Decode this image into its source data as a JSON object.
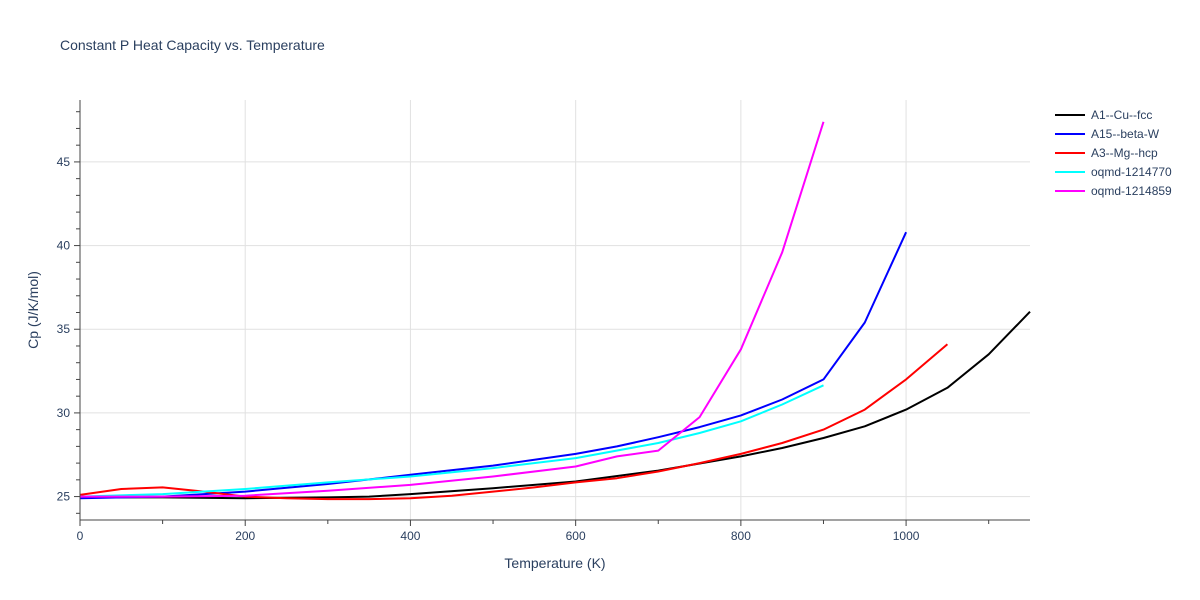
{
  "chart_data": {
    "type": "line",
    "title": "Constant P Heat Capacity vs. Temperature",
    "xlabel": "Temperature (K)",
    "ylabel": "Cp (J/K/mol)",
    "xlim": [
      0,
      1150
    ],
    "ylim": [
      23.6,
      48.7
    ],
    "xticks": [
      0,
      200,
      400,
      600,
      800,
      1000
    ],
    "yticks": [
      25,
      30,
      35,
      40,
      45
    ],
    "grid": true,
    "legend_position": "top-right",
    "series": [
      {
        "name": "A1--Cu--fcc",
        "color": "#000000",
        "x": [
          0,
          100,
          200,
          300,
          350,
          400,
          500,
          600,
          700,
          800,
          850,
          900,
          950,
          1000,
          1050,
          1100,
          1150
        ],
        "y": [
          24.95,
          24.95,
          24.9,
          24.95,
          25.0,
          25.15,
          25.5,
          25.9,
          26.55,
          27.4,
          27.9,
          28.5,
          29.2,
          30.2,
          31.5,
          33.5,
          36.05
        ]
      },
      {
        "name": "A15--beta-W",
        "color": "#0000ff",
        "x": [
          0,
          100,
          200,
          300,
          400,
          500,
          600,
          650,
          700,
          750,
          800,
          850,
          900,
          950,
          1000
        ],
        "y": [
          24.9,
          25.0,
          25.3,
          25.75,
          26.3,
          26.85,
          27.55,
          28.0,
          28.55,
          29.15,
          29.85,
          30.8,
          32.0,
          35.4,
          40.8
        ]
      },
      {
        "name": "A3--Mg--hcp",
        "color": "#ff0000",
        "x": [
          0,
          50,
          100,
          150,
          200,
          250,
          300,
          350,
          400,
          450,
          500,
          550,
          600,
          650,
          700,
          750,
          800,
          850,
          900,
          950,
          1000,
          1050
        ],
        "y": [
          25.1,
          25.45,
          25.55,
          25.3,
          25.0,
          24.9,
          24.85,
          24.85,
          24.9,
          25.05,
          25.3,
          25.55,
          25.85,
          26.1,
          26.5,
          27.0,
          27.55,
          28.2,
          29.0,
          30.2,
          32.0,
          34.1
        ]
      },
      {
        "name": "oqmd-1214770",
        "color": "#00ffff",
        "x": [
          0,
          100,
          200,
          300,
          400,
          500,
          600,
          700,
          750,
          800,
          850,
          900
        ],
        "y": [
          25.0,
          25.15,
          25.45,
          25.85,
          26.2,
          26.7,
          27.3,
          28.2,
          28.8,
          29.5,
          30.5,
          31.65
        ]
      },
      {
        "name": "oqmd-1214859",
        "color": "#ff00ff",
        "x": [
          0,
          100,
          200,
          300,
          400,
          500,
          600,
          650,
          700,
          750,
          800,
          850,
          900
        ],
        "y": [
          25.0,
          25.0,
          25.05,
          25.35,
          25.7,
          26.2,
          26.8,
          27.4,
          27.75,
          29.75,
          33.8,
          39.6,
          47.4
        ]
      }
    ]
  }
}
